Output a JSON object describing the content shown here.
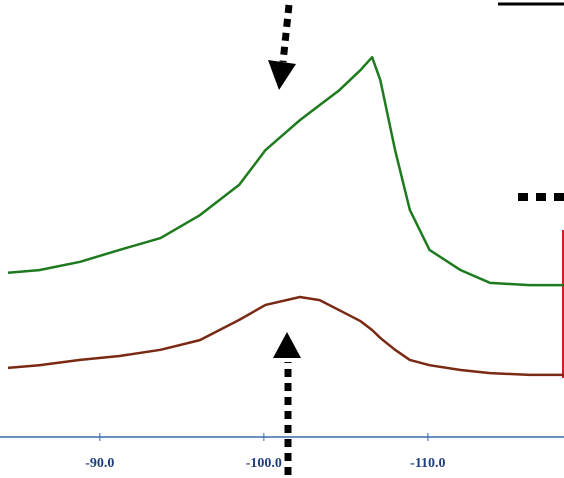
{
  "chart_data": {
    "type": "line",
    "x": [
      -84.4,
      -86.3,
      -88.8,
      -91.2,
      -93.7,
      -96.1,
      -98.5,
      -100.1,
      -102.2,
      -103.4,
      -104.6,
      -105.9,
      -106.6,
      -107.1,
      -108.0,
      -108.9,
      -110.1,
      -112.0,
      -113.8,
      -116.2,
      -118.3
    ],
    "series": [
      {
        "color": "#1e7a1e",
        "values": [
          38.0,
          38.6,
          40.5,
          43.2,
          45.9,
          51.1,
          58.0,
          65.9,
          72.7,
          76.1,
          79.5,
          84.1,
          87.0,
          81.8,
          65.9,
          52.3,
          43.2,
          38.6,
          35.7,
          35.2,
          35.2
        ]
      },
      {
        "color": "#7a2a14",
        "values": [
          16.4,
          17.0,
          18.2,
          19.1,
          20.5,
          22.7,
          27.3,
          30.7,
          32.5,
          31.8,
          29.5,
          27.0,
          25.0,
          23.2,
          20.5,
          18.2,
          17.0,
          15.9,
          15.2,
          14.8,
          14.8
        ]
      }
    ],
    "xlim": [
      -84.4,
      -118.3
    ],
    "ylim": [
      0,
      100
    ],
    "xticks": [
      {
        "value": -90,
        "label": "-90.0"
      },
      {
        "value": -100,
        "label": "-100.0"
      },
      {
        "value": -110,
        "label": "-110.0"
      }
    ],
    "axis_color": "#3a6aa8"
  }
}
